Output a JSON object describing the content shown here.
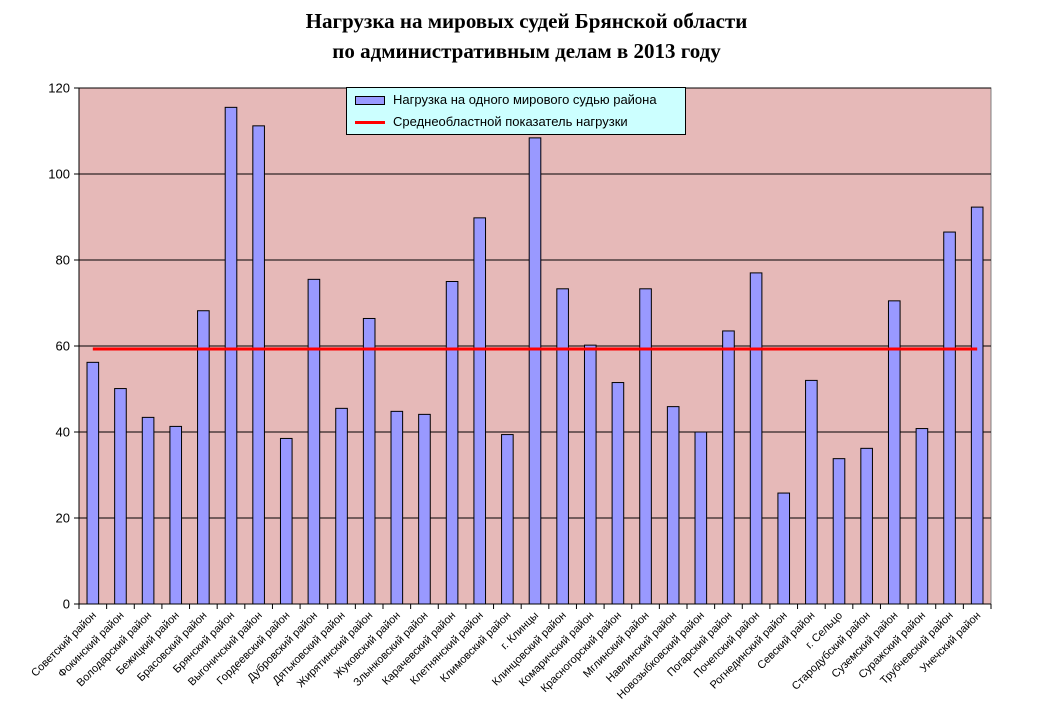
{
  "title": {
    "line1": "Нагрузка на мировых судей Брянской области",
    "line2": "по административным делам в 2013 году"
  },
  "legend": {
    "bar_label": "Нагрузка на одного мирового судью района",
    "line_label": "Среднеобластной показатель нагрузки"
  },
  "colors": {
    "plot_bg": "#e6b9b8",
    "bar": "#9999ff",
    "line": "#ff0000",
    "legend_bg": "#ccffff"
  },
  "chart_data": {
    "type": "bar",
    "title": "Нагрузка на мировых судей Брянской области по административным делам в 2013 году",
    "xlabel": "",
    "ylabel": "",
    "ylim": [
      0,
      120
    ],
    "yticks": [
      0,
      20,
      40,
      60,
      80,
      100,
      120
    ],
    "grid": true,
    "legend_position": "top",
    "categories": [
      "Советский район",
      "Фокинский район",
      "Володарский район",
      "Бежицкий район",
      "Брасовский район",
      "Брянский район",
      "Выгоничский район",
      "Гордеевский район",
      "Дубровский район",
      "Дятьковский район",
      "Жирятинский район",
      "Жуковский район",
      "Злынковский район",
      "Карачевский район",
      "Клетнянский район",
      "Климовский район",
      "г. Клинцы",
      "Клинцовский район",
      "Комаричский район",
      "Красногорский район",
      "Мглинский район",
      "Навлинский район",
      "Новозыбковский район",
      "Погарский район",
      "Почепский район",
      "Рогнединский район",
      "Севский район",
      "г. Сельцо",
      "Стародубский район",
      "Суземский район",
      "Суражский район",
      "Трубчевский район",
      "Унечский район"
    ],
    "series": [
      {
        "name": "Нагрузка на одного мирового судью района",
        "type": "bar",
        "values": [
          56.2,
          50.1,
          43.4,
          41.3,
          68.2,
          115.5,
          111.2,
          38.5,
          75.5,
          45.5,
          66.4,
          44.8,
          44.1,
          75.0,
          89.8,
          39.4,
          108.4,
          73.3,
          60.2,
          51.5,
          73.3,
          45.9,
          40.0,
          63.5,
          77.0,
          25.8,
          52.0,
          33.8,
          36.2,
          70.5,
          40.8,
          86.5,
          92.3
        ]
      },
      {
        "name": "Среднеобластной показатель нагрузки",
        "type": "line",
        "value": 59.3
      }
    ]
  }
}
